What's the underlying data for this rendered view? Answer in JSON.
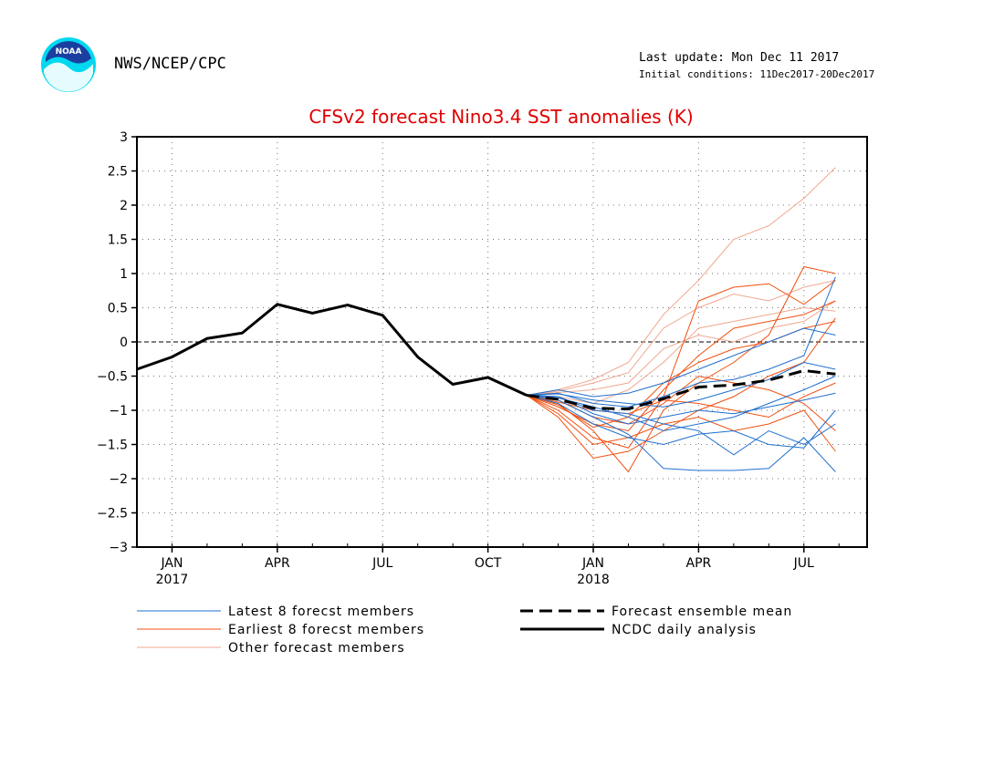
{
  "header": {
    "org": "NWS/NCEP/CPC",
    "last_update": "Last update: Mon Dec 11 2017",
    "initial_conditions": "Initial conditions: 11Dec2017-20Dec2017",
    "logo_text": "NOAA"
  },
  "colors": {
    "title": "#e00000",
    "latest": "#1f6fcf",
    "earliest": "#f05010",
    "other": "#f0a890",
    "analysis": "#000000",
    "mean": "#000000"
  },
  "chart_data": {
    "type": "line",
    "title": "CFSv2 forecast Nino3.4 SST anomalies (K)",
    "ylim": [
      -3,
      3
    ],
    "yticks": [
      "3",
      "2.5",
      "2",
      "1.5",
      "1",
      "0.5",
      "0",
      "−0.5",
      "−1",
      "−1.5",
      "−2",
      "−2.5",
      "−3"
    ],
    "xlim": [
      -1,
      19.8
    ],
    "xticks": [
      {
        "m": 0,
        "label": "JAN",
        "year": "2017"
      },
      {
        "m": 3,
        "label": "APR",
        "year": ""
      },
      {
        "m": 6,
        "label": "JUL",
        "year": ""
      },
      {
        "m": 9,
        "label": "OCT",
        "year": ""
      },
      {
        "m": 12,
        "label": "JAN",
        "year": "2018"
      },
      {
        "m": 15,
        "label": "APR",
        "year": ""
      },
      {
        "m": 18,
        "label": "JUL",
        "year": ""
      }
    ],
    "grid": true,
    "analysis": {
      "name": "NCDC daily analysis",
      "x": [
        -1,
        0,
        1,
        2,
        3,
        4,
        5,
        6,
        7,
        8,
        9,
        10.1
      ],
      "y": [
        -0.4,
        -0.22,
        0.05,
        0.13,
        0.55,
        0.42,
        0.54,
        0.39,
        -0.22,
        -0.62,
        -0.52,
        -0.78
      ]
    },
    "ensemble_mean": {
      "name": "Forecast ensemble mean",
      "x": [
        10.1,
        11,
        12,
        13,
        14,
        15,
        16,
        17,
        18,
        18.9
      ],
      "y": [
        -0.78,
        -0.84,
        -0.97,
        -0.98,
        -0.83,
        -0.66,
        -0.63,
        -0.56,
        -0.42,
        -0.47
      ]
    },
    "members_x": [
      10.1,
      11,
      12,
      13,
      14,
      15,
      16,
      17,
      18,
      18.9
    ],
    "latest_members": {
      "name": "Latest 8 forecst members",
      "series": [
        [
          -0.78,
          -0.85,
          -1.1,
          -1.35,
          -1.85,
          -1.88,
          -1.88,
          -1.85,
          -1.4,
          -1.9
        ],
        [
          -0.78,
          -0.8,
          -1.0,
          -1.05,
          -1.2,
          -1.3,
          -1.65,
          -1.3,
          -1.5,
          -1.2
        ],
        [
          -0.78,
          -0.75,
          -0.9,
          -0.95,
          -0.8,
          -0.6,
          -0.55,
          -0.4,
          -0.2,
          0.95
        ],
        [
          -0.78,
          -0.82,
          -0.95,
          -1.1,
          -1.3,
          -1.2,
          -1.1,
          -0.9,
          -0.7,
          -0.5
        ],
        [
          -0.78,
          -0.7,
          -0.8,
          -0.75,
          -0.6,
          -0.4,
          -0.2,
          0.0,
          0.2,
          0.1
        ],
        [
          -0.78,
          -0.9,
          -1.2,
          -1.4,
          -1.5,
          -1.35,
          -1.3,
          -1.5,
          -1.55,
          -1.0
        ],
        [
          -0.78,
          -0.76,
          -0.85,
          -0.9,
          -0.95,
          -0.85,
          -0.7,
          -0.55,
          -0.3,
          -0.4
        ],
        [
          -0.78,
          -0.8,
          -1.05,
          -1.2,
          -1.1,
          -1.0,
          -1.05,
          -0.95,
          -0.85,
          -0.75
        ]
      ]
    },
    "earliest_members": {
      "name": "Earliest 8 forecst members",
      "series": [
        [
          -0.78,
          -1.0,
          -1.4,
          -1.55,
          -0.8,
          0.6,
          0.8,
          0.85,
          0.55,
          0.9
        ],
        [
          -0.78,
          -0.9,
          -1.3,
          -1.9,
          -1.0,
          -0.6,
          -0.3,
          0.1,
          1.1,
          1.0
        ],
        [
          -0.78,
          -1.1,
          -1.7,
          -1.6,
          -1.3,
          -1.0,
          -0.8,
          -0.5,
          -0.3,
          0.35
        ],
        [
          -0.78,
          -0.95,
          -1.2,
          -1.3,
          -0.7,
          -0.2,
          0.2,
          0.3,
          0.4,
          0.6
        ],
        [
          -0.78,
          -1.05,
          -1.5,
          -1.4,
          -1.2,
          -1.1,
          -1.3,
          -1.2,
          -1.0,
          -1.6
        ],
        [
          -0.78,
          -0.85,
          -1.1,
          -1.2,
          -0.9,
          -0.5,
          -0.6,
          -0.7,
          -0.9,
          -1.3
        ],
        [
          -0.78,
          -0.92,
          -1.25,
          -1.1,
          -0.6,
          -0.3,
          -0.1,
          0.0,
          0.2,
          0.3
        ],
        [
          -0.78,
          -0.88,
          -1.0,
          -1.05,
          -0.85,
          -0.9,
          -1.0,
          -1.1,
          -0.8,
          -0.6
        ]
      ]
    },
    "other_members": {
      "name": "Other forecast members",
      "series": [
        [
          -0.78,
          -0.7,
          -0.55,
          -0.3,
          0.4,
          0.9,
          1.5,
          1.7,
          2.1,
          2.55
        ],
        [
          -0.78,
          -0.72,
          -0.6,
          -0.45,
          0.2,
          0.5,
          0.7,
          0.6,
          0.8,
          0.9
        ],
        [
          -0.78,
          -0.8,
          -0.9,
          -0.7,
          -0.3,
          0.2,
          0.3,
          0.4,
          0.5,
          0.45
        ],
        [
          -0.78,
          -0.74,
          -0.7,
          -0.6,
          -0.1,
          0.1,
          0.0,
          0.2,
          0.3,
          0.6
        ]
      ]
    }
  },
  "legend": {
    "latest": "Latest 8 forecst members",
    "earliest": "Earliest 8 forecst members",
    "other": "Other forecast members",
    "mean": "Forecast ensemble mean",
    "analysis": "NCDC daily analysis"
  }
}
